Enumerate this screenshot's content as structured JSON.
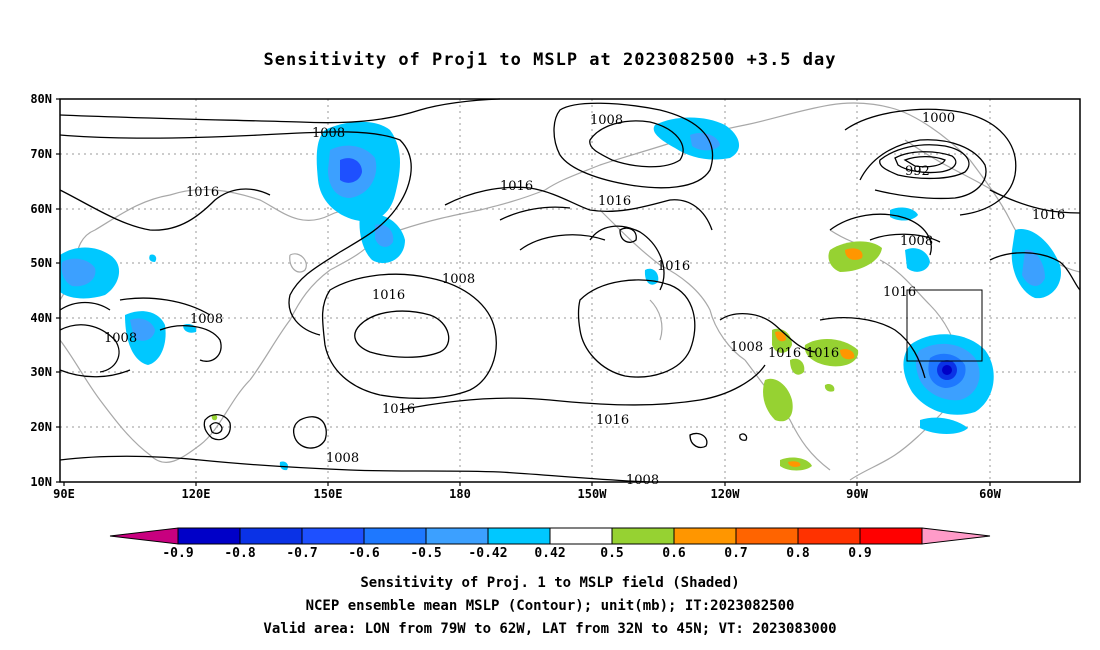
{
  "title": "Sensitivity of Proj1 to MSLP at 2023082500 +3.5 day",
  "lat_labels": [
    "80N",
    "70N",
    "60N",
    "50N",
    "40N",
    "30N",
    "20N",
    "10N"
  ],
  "lon_labels": [
    "90E",
    "120E",
    "150E",
    "180",
    "150W",
    "120W",
    "90W",
    "60W"
  ],
  "colorbar": {
    "ticks": [
      "-0.9",
      "-0.8",
      "-0.7",
      "-0.6",
      "-0.5",
      "-0.42",
      "0.42",
      "0.5",
      "0.6",
      "0.7",
      "0.8",
      "0.9"
    ],
    "colors": [
      "#c8007f",
      "#0000c8",
      "#0a32e6",
      "#1e50ff",
      "#1e78ff",
      "#3ca0ff",
      "#00c8ff",
      "#ffffff",
      "#96d232",
      "#ff9600",
      "#ff6400",
      "#ff3200",
      "#ff0000",
      "#ff9bc8"
    ]
  },
  "contour_labels": [
    "1008",
    "1008",
    "1000",
    "992",
    "1016",
    "1016",
    "1016",
    "1016",
    "1008",
    "1016",
    "1016",
    "1008",
    "1008",
    "1016",
    "1008",
    "1016",
    "1016",
    "1008",
    "1016",
    "1008",
    "1016",
    "1008"
  ],
  "captions": [
    "Sensitivity of Proj. 1 to MSLP field (Shaded)",
    "NCEP ensemble mean MSLP (Contour); unit(mb); IT:2023082500",
    "Valid area: LON from 79W to 62W, LAT from 32N to 45N; VT: 2023083000"
  ]
}
